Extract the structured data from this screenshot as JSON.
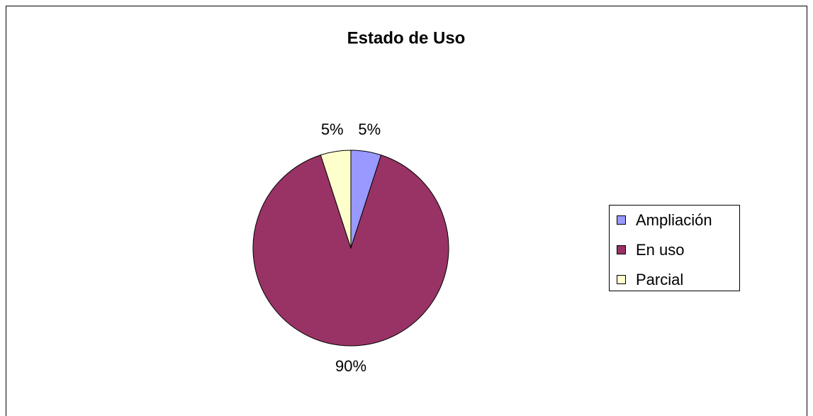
{
  "chart_data": {
    "type": "pie",
    "title": "Estado de Uso",
    "categories": [
      "Ampliación",
      "En uso",
      "Parcial"
    ],
    "values": [
      5,
      90,
      5
    ],
    "value_labels": [
      "5%",
      "90%",
      "5%"
    ],
    "colors": [
      "#9999ff",
      "#993366",
      "#ffffcc"
    ],
    "legend": "right"
  }
}
